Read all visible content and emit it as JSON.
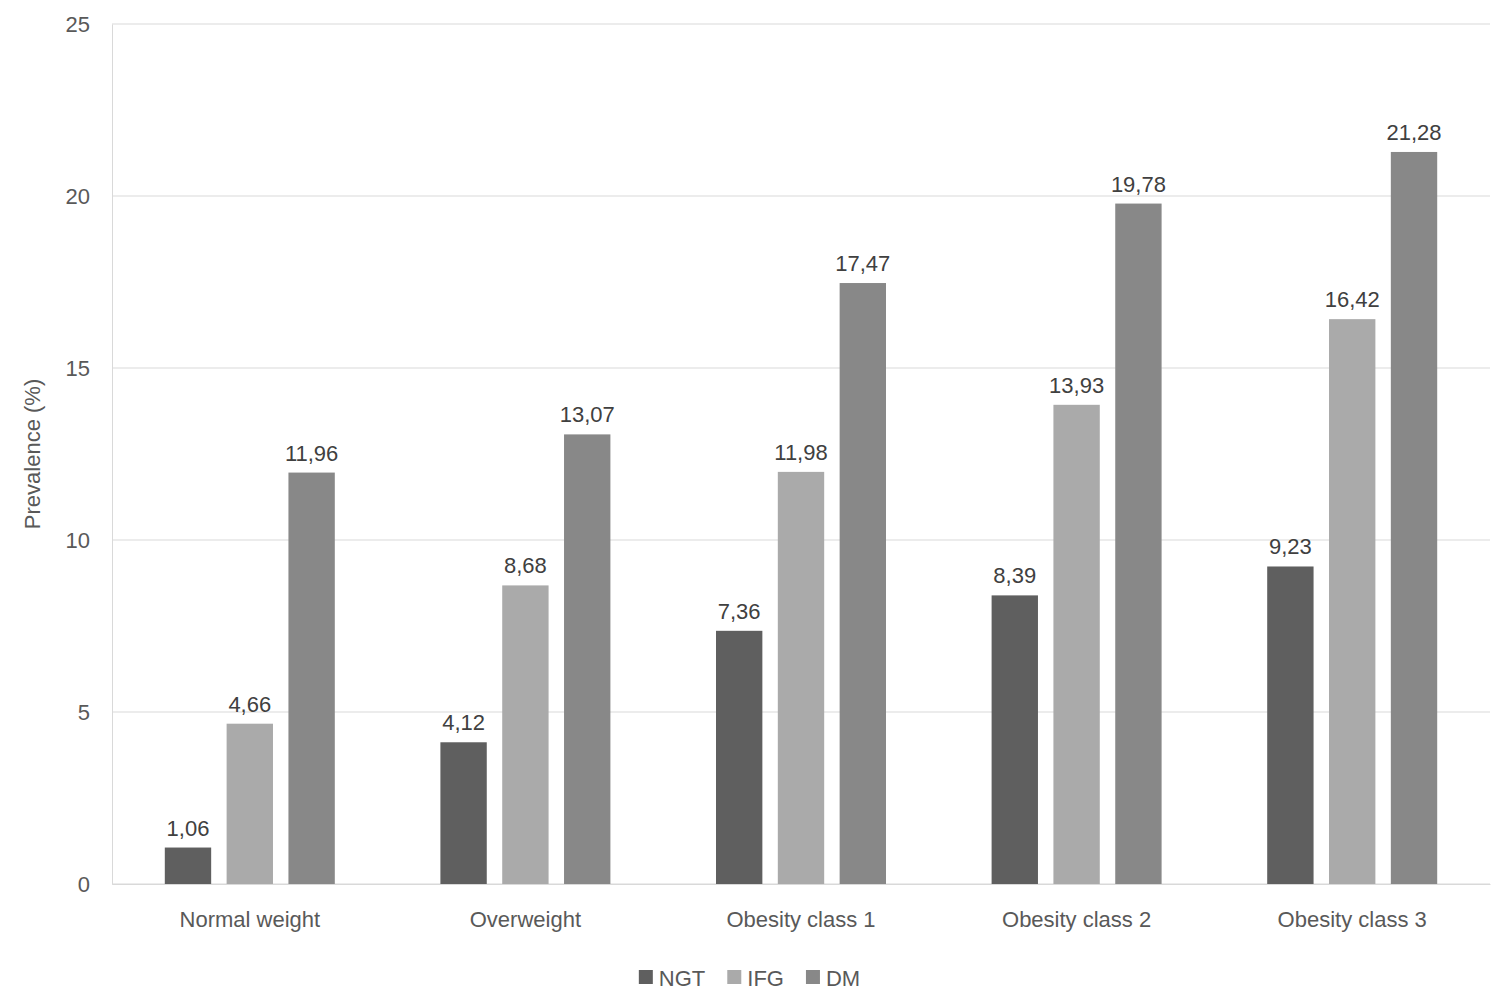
{
  "chart_data": {
    "type": "bar",
    "y_label": "Prevalence (%)",
    "categories": [
      "Normal weight",
      "Overweight",
      "Obesity class 1",
      "Obesity class 2",
      "Obesity class 3"
    ],
    "series": [
      {
        "name": "NGT",
        "color": "#5f5f5f",
        "values": [
          1.06,
          4.12,
          7.36,
          8.39,
          9.23
        ],
        "value_labels": [
          "1,06",
          "4,12",
          "7,36",
          "8,39",
          "9,23"
        ]
      },
      {
        "name": "IFG",
        "color": "#aaaaaa",
        "values": [
          4.66,
          8.68,
          11.98,
          13.93,
          16.42
        ],
        "value_labels": [
          "4,66",
          "8,68",
          "11,98",
          "13,93",
          "16,42"
        ]
      },
      {
        "name": "DM",
        "color": "#888888",
        "values": [
          11.96,
          13.07,
          17.47,
          19.78,
          21.28
        ],
        "value_labels": [
          "11,96",
          "13,07",
          "17,47",
          "19,78",
          "21,28"
        ]
      }
    ],
    "ylim": [
      0,
      25
    ],
    "yticks": [
      0,
      5,
      10,
      15,
      20,
      25
    ],
    "grid": true,
    "data_labels": true,
    "legend": "bottom"
  }
}
